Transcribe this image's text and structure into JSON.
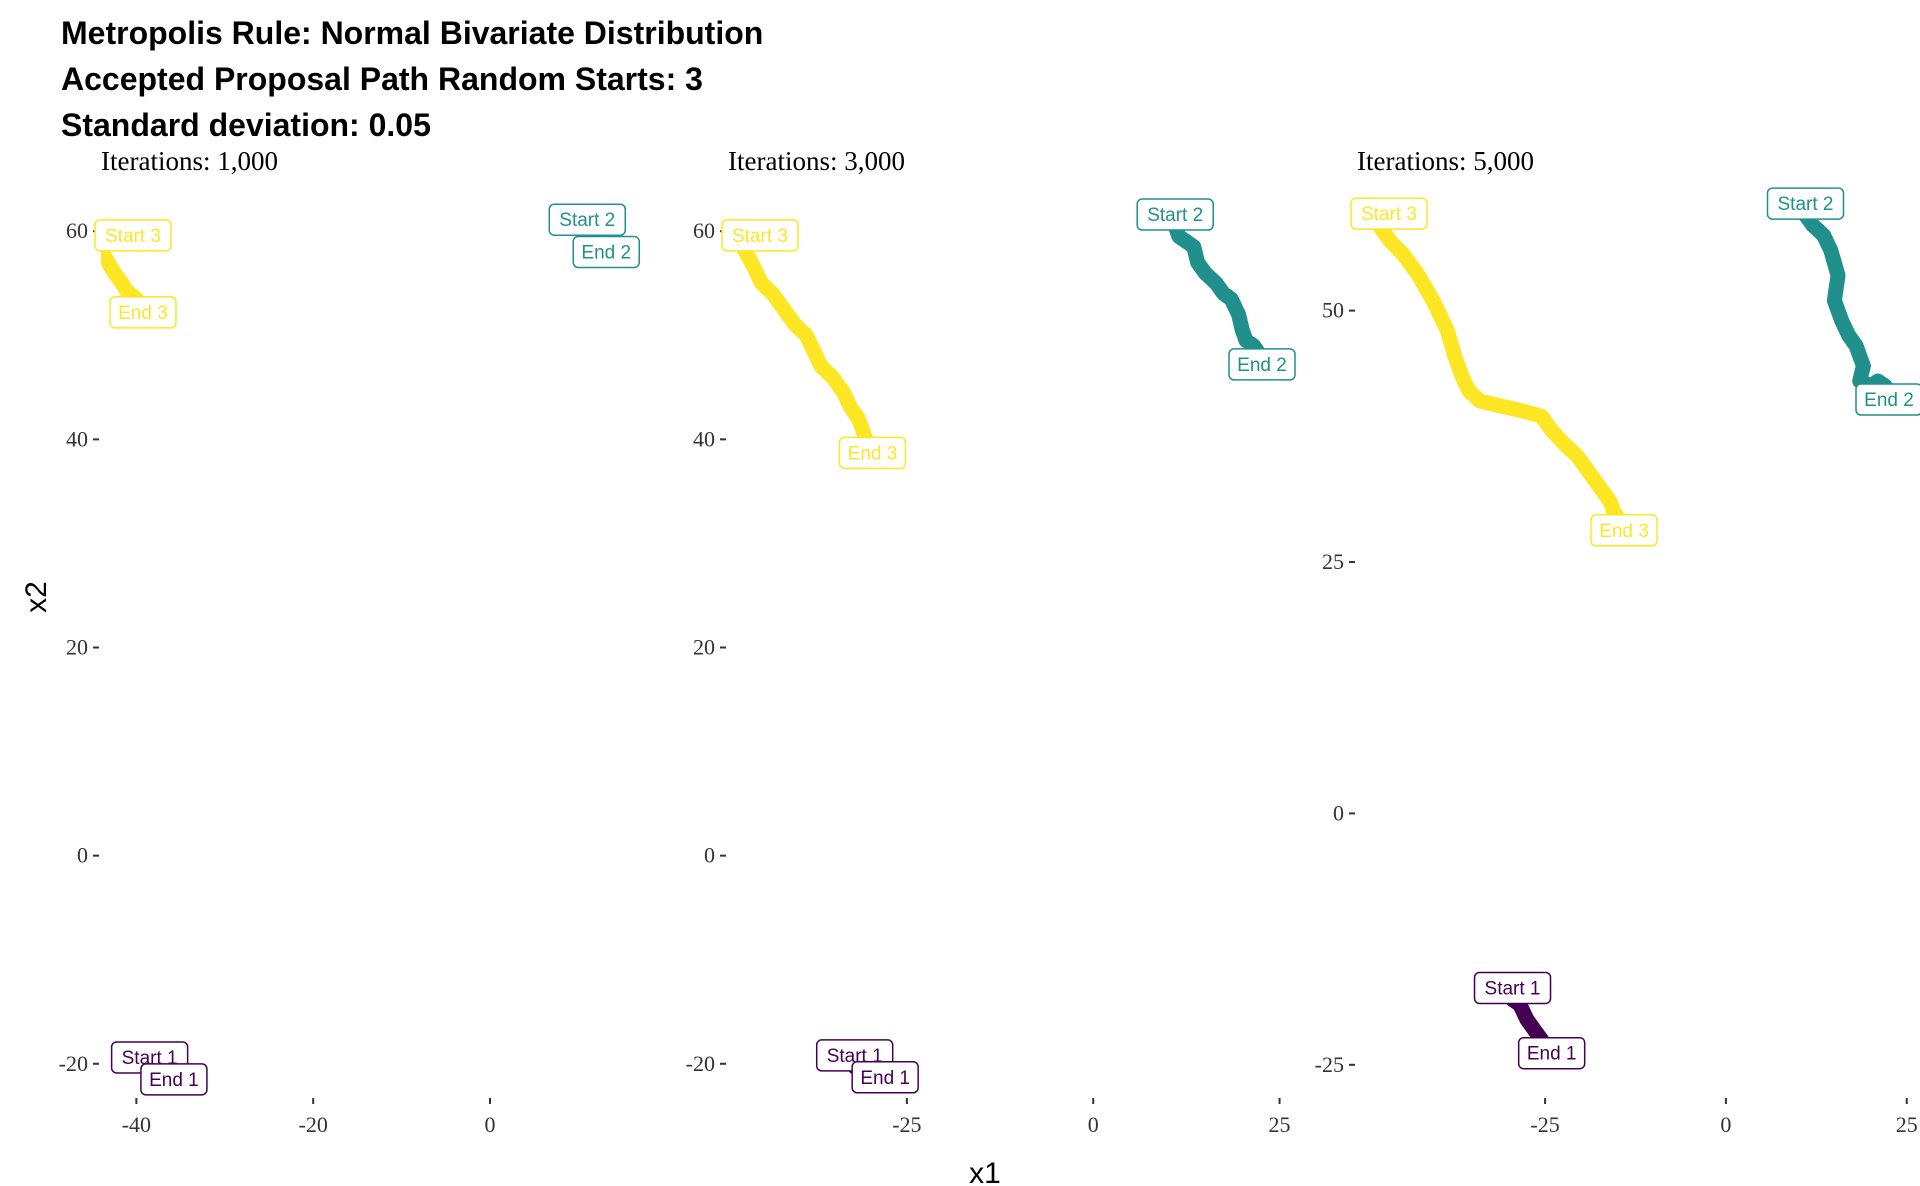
{
  "title": {
    "line1": "Metropolis Rule: Normal Bivariate Distribution",
    "line2": "Accepted Proposal Path Random Starts: 3",
    "line3": "Standard deviation: 0.05"
  },
  "colors": {
    "chain1": "#440154",
    "chain2": "#21908C",
    "chain3": "#FDE725",
    "tick": "#333333"
  },
  "chart_data": {
    "type": "line",
    "xlabel": "x1",
    "ylabel": "x2",
    "panels": [
      {
        "title": "Iterations: 1,000",
        "xlim": [
          -44,
          19
        ],
        "ylim": [
          -23,
          63
        ],
        "xticks": [
          -40,
          -20,
          0
        ],
        "xtick_labels": [
          "-40",
          "-20",
          "0"
        ],
        "yticks": [
          -20,
          0,
          20,
          40,
          60
        ],
        "ytick_labels": [
          "-20",
          "0",
          "20",
          "40",
          "60"
        ],
        "series": [
          {
            "color": "#440154",
            "points": [
              [
                -38.5,
                -20.5
              ],
              [
                -37.5,
                -20.0
              ],
              [
                -36.5,
                -20.2
              ]
            ],
            "labels": [
              {
                "text": "Start 1",
                "x": -38.5,
                "y": -20.5
              },
              {
                "text": "End 1",
                "x": -36.5,
                "y": -20.2
              }
            ]
          },
          {
            "color": "#21908C",
            "points": [
              [
                11.0,
                60.0
              ],
              [
                11.5,
                59.8
              ],
              [
                12.0,
                59.5
              ],
              [
                12.4,
                59.3
              ]
            ],
            "labels": [
              {
                "text": "Start 2",
                "x": 11.0,
                "y": 60.0
              },
              {
                "text": "End 2",
                "x": 12.4,
                "y": 59.3
              }
            ]
          },
          {
            "color": "#FDE725",
            "points": [
              [
                -44.2,
                58.5
              ],
              [
                -43.8,
                58.0
              ],
              [
                -43.2,
                57.0
              ],
              [
                -42.5,
                56.0
              ],
              [
                -41.8,
                55.2
              ],
              [
                -41.0,
                54.2
              ],
              [
                -40.0,
                53.5
              ]
            ],
            "labels": [
              {
                "text": "Start 3",
                "x": -44.2,
                "y": 58.5
              },
              {
                "text": "End 3",
                "x": -40.0,
                "y": 53.5
              }
            ]
          }
        ]
      },
      {
        "title": "Iterations: 3,000",
        "xlim": [
          -49,
          26
        ],
        "ylim": [
          -23,
          63
        ],
        "xticks": [
          -25,
          0,
          25
        ],
        "xtick_labels": [
          "-25",
          "0",
          "25"
        ],
        "yticks": [
          -20,
          0,
          20,
          40,
          60
        ],
        "ytick_labels": [
          "-20",
          "0",
          "20",
          "40",
          "60"
        ],
        "series": [
          {
            "color": "#440154",
            "points": [
              [
                -32.0,
                -20.3
              ],
              [
                -31.0,
                -20.0
              ],
              [
                -30.0,
                -19.8
              ],
              [
                -29.0,
                -20.0
              ],
              [
                -28.8,
                -20.6
              ]
            ],
            "labels": [
              {
                "text": "Start 1",
                "x": -32.0,
                "y": -20.3
              },
              {
                "text": "End 1",
                "x": -28.8,
                "y": -20.0
              }
            ]
          },
          {
            "color": "#21908C",
            "points": [
              [
                11.0,
                60.5
              ],
              [
                11.5,
                59.5
              ],
              [
                12.5,
                59.0
              ],
              [
                13.5,
                58.5
              ],
              [
                14.0,
                57.0
              ],
              [
                15.0,
                56.0
              ],
              [
                16.5,
                55.0
              ],
              [
                17.5,
                54.0
              ],
              [
                18.5,
                53.5
              ],
              [
                19.5,
                52.0
              ],
              [
                20.0,
                50.5
              ],
              [
                20.5,
                49.5
              ],
              [
                21.5,
                49.0
              ],
              [
                22.0,
                48.5
              ]
            ],
            "labels": [
              {
                "text": "Start 2",
                "x": 11.0,
                "y": 60.5
              },
              {
                "text": "End 2",
                "x": 22.0,
                "y": 48.5
              }
            ]
          },
          {
            "color": "#FDE725",
            "points": [
              [
                -47.0,
                58.5
              ],
              [
                -45.5,
                56.5
              ],
              [
                -44.5,
                55.0
              ],
              [
                -43.0,
                54.0
              ],
              [
                -41.5,
                52.5
              ],
              [
                -40.0,
                51.0
              ],
              [
                -38.5,
                50.0
              ],
              [
                -37.5,
                48.5
              ],
              [
                -36.5,
                47.0
              ],
              [
                -35.0,
                46.0
              ],
              [
                -33.5,
                44.5
              ],
              [
                -32.5,
                43.0
              ],
              [
                -31.5,
                42.0
              ],
              [
                -31.0,
                41.0
              ],
              [
                -30.5,
                40.0
              ]
            ],
            "labels": [
              {
                "text": "Start 3",
                "x": -47.0,
                "y": 58.5
              },
              {
                "text": "End 3",
                "x": -30.5,
                "y": 40.0
              }
            ]
          }
        ]
      },
      {
        "title": "Iterations: 5,000",
        "xlim": [
          -51,
          26
        ],
        "ylim": [
          -28,
          61
        ],
        "xticks": [
          -25,
          0,
          25
        ],
        "xtick_labels": [
          "-25",
          "0",
          "25"
        ],
        "yticks": [
          -25,
          0,
          25,
          50
        ],
        "ytick_labels": [
          "-25",
          "0",
          "25",
          "50"
        ],
        "series": [
          {
            "color": "#440154",
            "points": [
              [
                -29.5,
                -18.5
              ],
              [
                -28.5,
                -19.0
              ],
              [
                -27.5,
                -20.5
              ],
              [
                -26.5,
                -21.5
              ],
              [
                -25.5,
                -22.5
              ],
              [
                -25.0,
                -24.0
              ]
            ],
            "labels": [
              {
                "text": "Start 1",
                "x": -29.5,
                "y": -18.5
              },
              {
                "text": "End 1",
                "x": -25.0,
                "y": -22.5
              }
            ]
          },
          {
            "color": "#21908C",
            "points": [
              [
                11.0,
                59.5
              ],
              [
                12.0,
                58.5
              ],
              [
                13.5,
                57.5
              ],
              [
                14.5,
                56.0
              ],
              [
                15.5,
                53.5
              ],
              [
                15.0,
                51.0
              ],
              [
                16.0,
                49.0
              ],
              [
                17.0,
                47.5
              ],
              [
                18.0,
                46.5
              ],
              [
                18.5,
                45.5
              ],
              [
                19.0,
                44.5
              ],
              [
                18.5,
                43.0
              ],
              [
                20.0,
                42.5
              ],
              [
                21.0,
                43.0
              ],
              [
                22.0,
                42.5
              ]
            ],
            "labels": [
              {
                "text": "Start 2",
                "x": 11.0,
                "y": 59.5
              },
              {
                "text": "End 2",
                "x": 22.0,
                "y": 42.5
              }
            ]
          },
          {
            "color": "#FDE725",
            "points": [
              [
                -48.0,
                58.5
              ],
              [
                -46.5,
                57.0
              ],
              [
                -44.5,
                55.5
              ],
              [
                -42.5,
                53.5
              ],
              [
                -40.5,
                51.0
              ],
              [
                -38.5,
                48.0
              ],
              [
                -37.5,
                45.5
              ],
              [
                -36.5,
                43.5
              ],
              [
                -35.5,
                42.0
              ],
              [
                -34.0,
                41.0
              ],
              [
                -31.0,
                40.5
              ],
              [
                -28.0,
                40.0
              ],
              [
                -25.5,
                39.5
              ],
              [
                -24.0,
                38.0
              ],
              [
                -22.0,
                36.5
              ],
              [
                -20.5,
                35.5
              ],
              [
                -19.0,
                34.0
              ],
              [
                -17.5,
                32.5
              ],
              [
                -16.0,
                31.0
              ],
              [
                -15.5,
                30.0
              ],
              [
                -15.0,
                29.5
              ]
            ],
            "labels": [
              {
                "text": "Start 3",
                "x": -48.0,
                "y": 58.5
              },
              {
                "text": "End 3",
                "x": -15.0,
                "y": 29.5
              }
            ]
          }
        ]
      }
    ]
  }
}
